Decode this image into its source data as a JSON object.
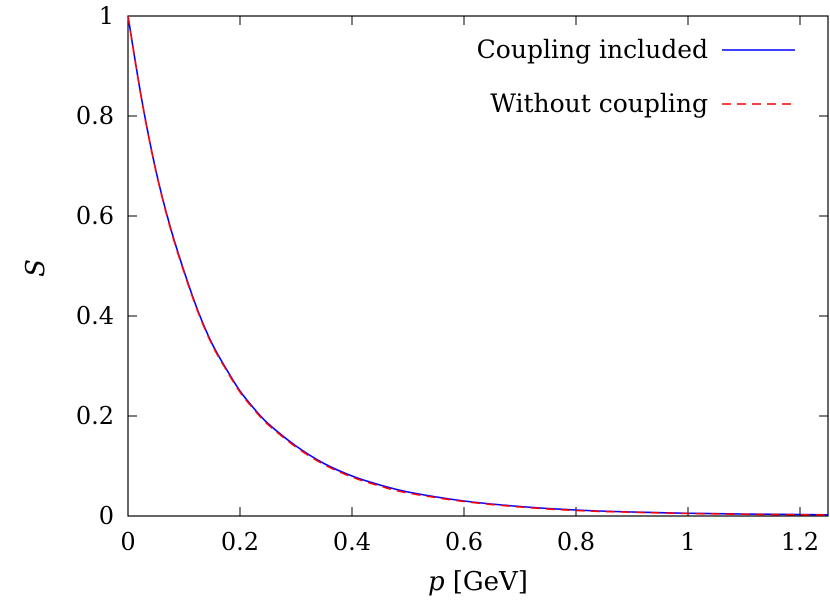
{
  "chart_data": {
    "type": "line",
    "xlabel_symbol": "p",
    "xlabel_unit": "[GeV]",
    "ylabel": "S",
    "xlim": [
      0,
      1.25
    ],
    "ylim": [
      0,
      1
    ],
    "x_ticks": [
      0,
      0.2,
      0.4,
      0.6,
      0.8,
      1,
      1.2
    ],
    "x_tick_labels": [
      "0",
      "0.2",
      "0.4",
      "0.6",
      "0.8",
      "1",
      "1.2"
    ],
    "y_ticks": [
      0,
      0.2,
      0.4,
      0.6,
      0.8,
      1
    ],
    "y_tick_labels": [
      "0",
      "0.2",
      "0.4",
      "0.6",
      "0.8",
      "1"
    ],
    "grid": false,
    "legend_position": "top-right",
    "x": [
      0,
      0.025,
      0.05,
      0.075,
      0.1,
      0.125,
      0.15,
      0.175,
      0.2,
      0.225,
      0.25,
      0.3,
      0.35,
      0.4,
      0.45,
      0.5,
      0.6,
      0.7,
      0.8,
      0.9,
      1.0,
      1.1,
      1.2,
      1.25
    ],
    "series": [
      {
        "name": "Coupling included",
        "color": "#0000ff",
        "style": "solid",
        "values": [
          1.0,
          0.83,
          0.69,
          0.58,
          0.49,
          0.41,
          0.345,
          0.295,
          0.25,
          0.215,
          0.185,
          0.14,
          0.105,
          0.08,
          0.062,
          0.048,
          0.03,
          0.019,
          0.012,
          0.008,
          0.0055,
          0.004,
          0.003,
          0.0025
        ]
      },
      {
        "name": "Without coupling",
        "color": "#ff0000",
        "style": "dashed",
        "values": [
          1.0,
          0.829,
          0.689,
          0.578,
          0.488,
          0.408,
          0.343,
          0.293,
          0.248,
          0.213,
          0.183,
          0.138,
          0.103,
          0.078,
          0.06,
          0.046,
          0.029,
          0.018,
          0.011,
          0.0075,
          0.005,
          0.0035,
          0.0025,
          0.002
        ]
      }
    ]
  }
}
